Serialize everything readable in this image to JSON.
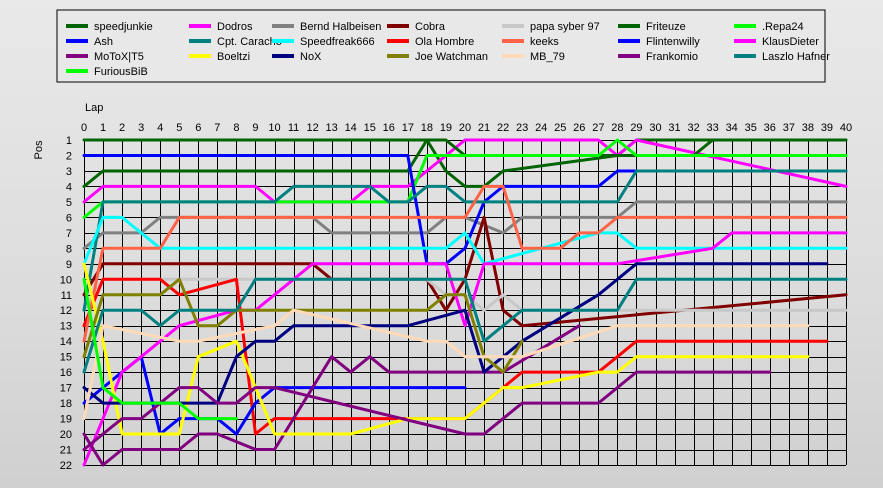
{
  "chart_data": {
    "type": "line",
    "xlabel": "Lap",
    "ylabel": "Pos",
    "xlim": [
      0,
      40
    ],
    "ylim": [
      1,
      22
    ],
    "y_inverted": true,
    "grid": true,
    "legend_placement": "top",
    "x_ticks": [
      0,
      1,
      2,
      3,
      4,
      5,
      6,
      7,
      8,
      9,
      10,
      11,
      12,
      13,
      14,
      15,
      16,
      17,
      18,
      19,
      20,
      21,
      22,
      23,
      24,
      25,
      26,
      27,
      28,
      29,
      30,
      31,
      32,
      33,
      34,
      35,
      36,
      37,
      38,
      39,
      40
    ],
    "y_ticks": [
      1,
      2,
      3,
      4,
      5,
      6,
      7,
      8,
      9,
      10,
      11,
      12,
      13,
      14,
      15,
      16,
      17,
      18,
      19,
      20,
      21,
      22
    ],
    "series": [
      {
        "name": "speedjunkie",
        "color": "#006400",
        "x": [
          0,
          1,
          17,
          18,
          19,
          20,
          21,
          22,
          28,
          29,
          40
        ],
        "y": [
          1,
          1,
          1,
          1,
          3,
          4,
          4,
          3,
          2,
          1,
          1
        ]
      },
      {
        "name": "Dodros",
        "color": "#ff00ff",
        "x": [
          0,
          1,
          9,
          10,
          14,
          15,
          17,
          18,
          19,
          20,
          21,
          27,
          28,
          29,
          40
        ],
        "y": [
          5,
          4,
          4,
          5,
          5,
          4,
          4,
          3,
          2,
          1,
          1,
          1,
          2,
          1,
          4
        ]
      },
      {
        "name": "Bernd Halbeisen",
        "color": "#808080",
        "x": [
          0,
          1,
          3,
          4,
          12,
          13,
          18,
          19,
          20,
          22,
          23,
          27,
          28,
          29,
          40
        ],
        "y": [
          8,
          7,
          7,
          6,
          6,
          7,
          7,
          6,
          6,
          7,
          6,
          6,
          6,
          5,
          5
        ]
      },
      {
        "name": "Cobra",
        "color": "#800000",
        "x": [
          0,
          1,
          12,
          13,
          18,
          19,
          20,
          21,
          22,
          23,
          40
        ],
        "y": [
          11,
          9,
          9,
          10,
          10,
          12,
          10,
          6,
          12,
          13,
          11
        ]
      },
      {
        "name": "papa syber 97",
        "color": "#c8c8c8",
        "x": [
          0,
          1,
          18,
          19,
          20,
          21,
          22,
          23,
          28,
          29,
          40
        ],
        "y": [
          12,
          10,
          10,
          11,
          11,
          12,
          11,
          12,
          12,
          12,
          12
        ]
      },
      {
        "name": "Friteuze",
        "color": "#006400",
        "x": [
          0,
          1,
          17,
          18,
          19,
          20,
          27,
          28,
          32,
          33,
          40
        ],
        "y": [
          4,
          3,
          3,
          1,
          1,
          2,
          2,
          2,
          2,
          1,
          1
        ]
      },
      {
        "name": ".Repa24",
        "color": "#00ff00",
        "x": [
          0,
          1,
          17,
          18,
          19,
          20,
          21,
          27,
          28,
          29,
          40
        ],
        "y": [
          6,
          5,
          5,
          2,
          2,
          2,
          2,
          2,
          1,
          2,
          2
        ]
      },
      {
        "name": "Ash",
        "color": "#0000ff",
        "x": [
          0,
          1,
          17,
          18,
          19,
          20,
          21,
          22,
          27,
          28,
          29,
          40
        ],
        "y": [
          2,
          2,
          2,
          9,
          9,
          8,
          5,
          4,
          4,
          3,
          3,
          3
        ]
      },
      {
        "name": "Cpt. Caracho",
        "color": "#008080",
        "x": [
          0,
          1,
          10,
          11,
          15,
          16,
          17,
          18,
          19,
          20,
          21,
          22,
          28,
          29,
          40
        ],
        "y": [
          12,
          5,
          5,
          4,
          4,
          5,
          5,
          4,
          4,
          5,
          5,
          5,
          5,
          3,
          3
        ]
      },
      {
        "name": "Speedfreak666",
        "color": "#00ffff",
        "x": [
          0,
          1,
          2,
          3,
          4,
          5,
          17,
          18,
          19,
          20,
          21,
          27,
          28,
          29,
          33,
          34,
          40
        ],
        "y": [
          9,
          6,
          6,
          7,
          8,
          8,
          8,
          8,
          8,
          7,
          9,
          7,
          7,
          8,
          8,
          8,
          8
        ]
      },
      {
        "name": "Ola Hombre",
        "color": "#ff0000",
        "x": [
          0,
          1,
          4,
          5,
          8,
          9,
          10,
          20,
          21,
          22,
          23,
          27,
          28,
          29,
          39
        ],
        "y": [
          13,
          10,
          10,
          11,
          10,
          20,
          19,
          19,
          18,
          17,
          16,
          16,
          15,
          14,
          14
        ]
      },
      {
        "name": "keeks",
        "color": "#ff6347",
        "x": [
          0,
          1,
          4,
          5,
          17,
          18,
          20,
          21,
          22,
          23,
          25,
          26,
          27,
          28,
          29,
          40
        ],
        "y": [
          14,
          8,
          8,
          6,
          6,
          6,
          6,
          4,
          4,
          8,
          8,
          7,
          7,
          6,
          6,
          6
        ]
      },
      {
        "name": "Flintenwilly",
        "color": "#0000ff",
        "x": [
          0,
          1,
          2,
          3,
          4,
          5,
          6,
          7,
          8,
          9,
          10,
          11,
          20
        ],
        "y": [
          18,
          17,
          16,
          15,
          20,
          19,
          19,
          19,
          20,
          18,
          17,
          17,
          17
        ]
      },
      {
        "name": "KlausDieter",
        "color": "#ff00ff",
        "x": [
          0,
          1,
          2,
          3,
          4,
          5,
          8,
          9,
          10,
          11,
          12,
          17,
          18,
          19,
          20,
          21,
          27,
          28,
          33,
          34,
          40
        ],
        "y": [
          22,
          19,
          16,
          15,
          14,
          13,
          12,
          12,
          11,
          10,
          9,
          9,
          9,
          9,
          13,
          9,
          9,
          9,
          8,
          7,
          7
        ]
      },
      {
        "name": "MoToX|T5",
        "color": "#800080",
        "x": [
          0,
          1,
          2,
          5,
          6,
          7,
          9,
          10,
          13,
          14,
          15,
          16,
          17,
          20,
          21,
          22,
          26
        ],
        "y": [
          20,
          22,
          21,
          21,
          20,
          20,
          21,
          21,
          15,
          16,
          15,
          16,
          16,
          16,
          16,
          16,
          13
        ]
      },
      {
        "name": "Boeltzi",
        "color": "#ffff00",
        "x": [
          0,
          1,
          2,
          5,
          6,
          8,
          9,
          10,
          13,
          14,
          17,
          20,
          21,
          22,
          23,
          27,
          28,
          29,
          38
        ],
        "y": [
          9,
          14,
          20,
          20,
          15,
          14,
          17,
          20,
          20,
          20,
          19,
          19,
          18,
          17,
          17,
          16,
          16,
          15,
          15
        ]
      },
      {
        "name": "NoX",
        "color": "#000080",
        "x": [
          0,
          1,
          7,
          8,
          9,
          10,
          11,
          17,
          20,
          21,
          22,
          23,
          27,
          28,
          29,
          39
        ],
        "y": [
          17,
          18,
          18,
          15,
          14,
          14,
          13,
          13,
          12,
          16,
          15,
          14,
          11,
          10,
          9,
          9
        ]
      },
      {
        "name": "Joe Watchman",
        "color": "#808000",
        "x": [
          0,
          1,
          2,
          4,
          5,
          6,
          7,
          8,
          16,
          17,
          18,
          19,
          20,
          21,
          22,
          23
        ],
        "y": [
          15,
          11,
          11,
          11,
          10,
          13,
          13,
          12,
          12,
          12,
          12,
          11,
          11,
          15,
          16,
          14
        ]
      },
      {
        "name": "MB_79",
        "color": "#ffdab9",
        "x": [
          0,
          1,
          5,
          6,
          10,
          11,
          18,
          19,
          20,
          21,
          22,
          23,
          28,
          29,
          38
        ],
        "y": [
          19,
          13,
          14,
          14,
          13,
          12,
          14,
          14,
          15,
          15,
          15,
          15,
          13,
          13,
          13
        ]
      },
      {
        "name": "Frankomio",
        "color": "#800080",
        "x": [
          0,
          1,
          2,
          3,
          4,
          5,
          6,
          7,
          8,
          9,
          10,
          20,
          21,
          22,
          23,
          27,
          28,
          29,
          36
        ],
        "y": [
          21,
          20,
          19,
          19,
          18,
          17,
          17,
          18,
          18,
          17,
          17,
          20,
          20,
          19,
          18,
          18,
          17,
          16,
          16
        ]
      },
      {
        "name": "Laszlo Hafner",
        "color": "#008080",
        "x": [
          0,
          1,
          3,
          4,
          5,
          6,
          8,
          9,
          10,
          11,
          20,
          21,
          22,
          23,
          28,
          29,
          34,
          35,
          40
        ],
        "y": [
          16,
          12,
          12,
          13,
          12,
          12,
          12,
          10,
          10,
          10,
          10,
          14,
          13,
          12,
          12,
          10,
          10,
          10,
          10
        ]
      },
      {
        "name": "FuriousBiB",
        "color": "#00ff00",
        "x": [
          0,
          1,
          2,
          3,
          4,
          5,
          6,
          7,
          8
        ],
        "y": [
          10,
          17,
          18,
          18,
          18,
          18,
          19,
          19,
          19
        ]
      }
    ]
  }
}
